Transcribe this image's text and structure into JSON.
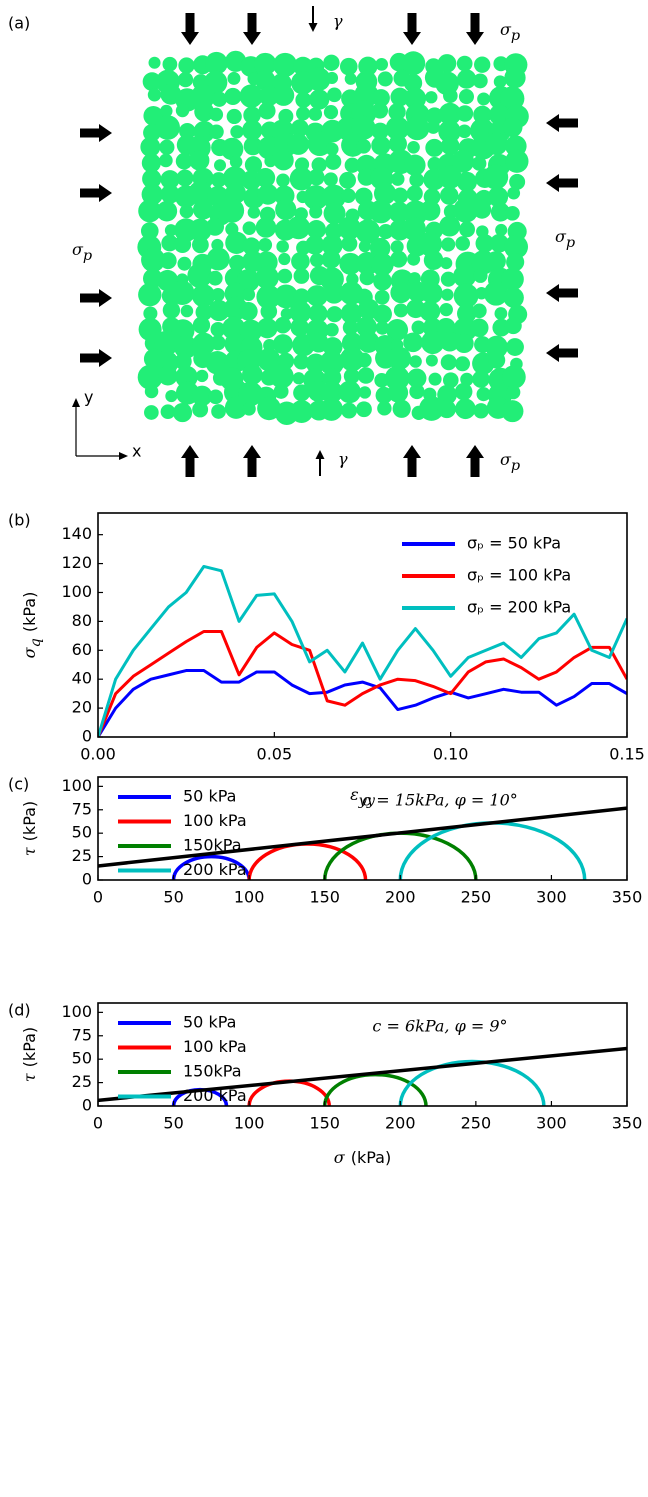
{
  "panel_a": {
    "label": "(a)",
    "gamma": "γ",
    "sigma": {
      "symbol": "σ",
      "subscript": "p"
    },
    "x_axis": "x",
    "y_axis": "y"
  },
  "chart_data": [
    {
      "type": "line",
      "panel_label": "(b)",
      "xlabel": {
        "symbol": "ε",
        "subscript": "yy"
      },
      "ylabel": {
        "symbol": "σ",
        "subscript": "q",
        "unit": "(kPa)"
      },
      "xlim": [
        0,
        0.15
      ],
      "ylim": [
        0,
        155
      ],
      "xticks": [
        {
          "value": 0,
          "label": "0.00"
        },
        {
          "value": 0.05,
          "label": "0.05"
        },
        {
          "value": 0.1,
          "label": "0.10"
        },
        {
          "value": 0.15,
          "label": "0.15"
        }
      ],
      "yticks": [
        0,
        20,
        40,
        60,
        80,
        100,
        120,
        140
      ],
      "grid": false,
      "legend": "upper right",
      "x": [
        0,
        0.005,
        0.01,
        0.015,
        0.02,
        0.025,
        0.03,
        0.035,
        0.04,
        0.045,
        0.05,
        0.055,
        0.06,
        0.065,
        0.07,
        0.075,
        0.08,
        0.085,
        0.09,
        0.095,
        0.1,
        0.105,
        0.11,
        0.115,
        0.12,
        0.125,
        0.13,
        0.135,
        0.14,
        0.145,
        0.15
      ],
      "series": [
        {
          "name": "σₚ = 50 kPa",
          "color": "#0000ff",
          "values": [
            0,
            20,
            33,
            40,
            43,
            46,
            46,
            38,
            38,
            45,
            45,
            36,
            30,
            31,
            36,
            38,
            34,
            19,
            22,
            27,
            31,
            27,
            30,
            33,
            31,
            31,
            22,
            28,
            37,
            37,
            30
          ]
        },
        {
          "name": "σₚ = 100 kPa",
          "color": "#ff0000",
          "values": [
            0,
            30,
            42,
            50,
            58,
            66,
            73,
            73,
            43,
            62,
            72,
            64,
            60,
            25,
            22,
            30,
            36,
            40,
            39,
            35,
            30,
            45,
            52,
            54,
            48,
            40,
            45,
            55,
            62,
            62,
            40
          ]
        },
        {
          "name": "σₚ = 200 kPa",
          "color": "#00bfbf",
          "values": [
            0,
            40,
            60,
            75,
            90,
            100,
            118,
            115,
            80,
            98,
            99,
            80,
            52,
            60,
            45,
            65,
            40,
            60,
            75,
            60,
            42,
            55,
            60,
            65,
            55,
            68,
            72,
            85,
            60,
            55,
            82
          ]
        }
      ]
    },
    {
      "type": "mohr",
      "panel_label": "(c)",
      "ylabel": {
        "symbol": "τ",
        "unit": "(kPa)"
      },
      "xlim": [
        0,
        350
      ],
      "ylim": [
        0,
        110
      ],
      "xticks": [
        0,
        50,
        100,
        150,
        200,
        250,
        300,
        350
      ],
      "yticks": [
        0,
        25,
        50,
        75,
        100
      ],
      "legend": "upper left",
      "c": 15,
      "phi": 10,
      "line_color": "#000000",
      "annotation": "c = 15kPa, φ = 10°",
      "series": [
        {
          "name": "50 kPa",
          "color": "#0000ff",
          "sigma3": 50,
          "sigma1": 100
        },
        {
          "name": "100 kPa",
          "color": "#ff0000",
          "sigma3": 100,
          "sigma1": 177
        },
        {
          "name": "150kPa",
          "color": "#008000",
          "sigma3": 150,
          "sigma1": 250
        },
        {
          "name": "200 kPa",
          "color": "#00bfbf",
          "sigma3": 200,
          "sigma1": 322
        }
      ]
    },
    {
      "type": "mohr",
      "panel_label": "(d)",
      "xlabel": {
        "symbol": "σ",
        "unit": "(kPa)"
      },
      "ylabel": {
        "symbol": "τ",
        "unit": "(kPa)"
      },
      "xlim": [
        0,
        350
      ],
      "ylim": [
        0,
        110
      ],
      "xticks": [
        0,
        50,
        100,
        150,
        200,
        250,
        300,
        350
      ],
      "yticks": [
        0,
        25,
        50,
        75,
        100
      ],
      "legend": "upper left",
      "c": 6,
      "phi": 9,
      "line_color": "#000000",
      "annotation": "c = 6kPa, φ = 9°",
      "series": [
        {
          "name": "50 kPa",
          "color": "#0000ff",
          "sigma3": 50,
          "sigma1": 85
        },
        {
          "name": "100 kPa",
          "color": "#ff0000",
          "sigma3": 100,
          "sigma1": 153
        },
        {
          "name": "150kPa",
          "color": "#008000",
          "sigma3": 150,
          "sigma1": 217
        },
        {
          "name": "200 kPa",
          "color": "#00bfbf",
          "sigma3": 200,
          "sigma1": 295
        }
      ]
    }
  ]
}
